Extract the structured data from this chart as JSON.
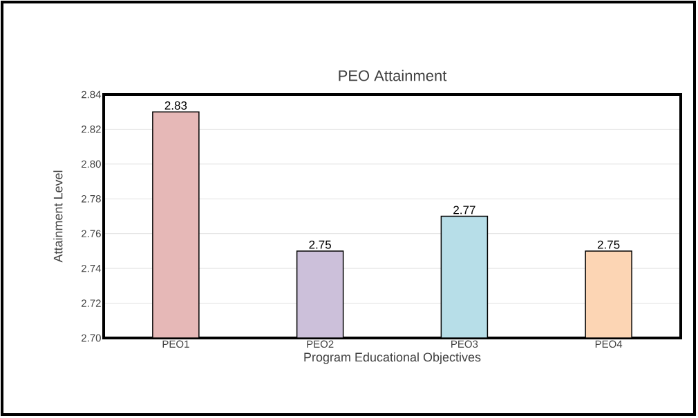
{
  "chart_data": {
    "type": "bar",
    "title": "PEO Attainment",
    "xlabel": "Program Educational Objectives",
    "ylabel": "Attainment Level",
    "categories": [
      "PEO1",
      "PEO2",
      "PEO3",
      "PEO4"
    ],
    "values": [
      2.83,
      2.75,
      2.77,
      2.75
    ],
    "colors": [
      "#e6b8b7",
      "#ccc0da",
      "#b7dee8",
      "#fcd5b4"
    ],
    "ylim": [
      2.7,
      2.84
    ],
    "yticks": [
      {
        "value": 2.7,
        "label": "2.70"
      },
      {
        "value": 2.72,
        "label": "2.72"
      },
      {
        "value": 2.74,
        "label": "2.74"
      },
      {
        "value": 2.76,
        "label": "2.76"
      },
      {
        "value": 2.78,
        "label": "2.78"
      },
      {
        "value": 2.8,
        "label": "2.80"
      },
      {
        "value": 2.82,
        "label": "2.82"
      },
      {
        "value": 2.84,
        "label": "2.84"
      }
    ],
    "grid": "y",
    "data_labels": true
  }
}
